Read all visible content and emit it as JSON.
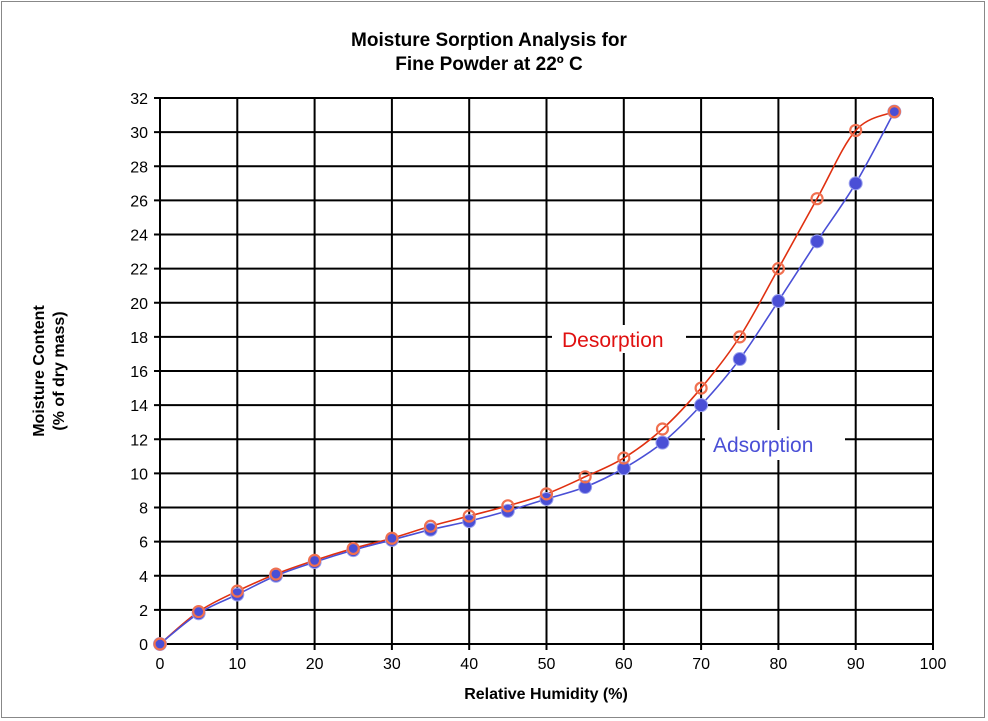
{
  "chart_data": {
    "type": "line",
    "title": [
      "Moisture Sorption Analysis for",
      "Fine Powder at 22º C"
    ],
    "xlabel": "Relative Humidity (%)",
    "ylabel": [
      "Moisture Content",
      "(% of dry mass)"
    ],
    "xlim": [
      0,
      100
    ],
    "ylim": [
      0,
      32
    ],
    "xticks": [
      0,
      10,
      20,
      30,
      40,
      50,
      60,
      70,
      80,
      90,
      100
    ],
    "yticks": [
      0,
      2,
      4,
      6,
      8,
      10,
      12,
      14,
      16,
      18,
      20,
      22,
      24,
      26,
      28,
      30,
      32
    ],
    "grid": true,
    "x": [
      0,
      5,
      10,
      15,
      20,
      25,
      30,
      35,
      40,
      45,
      50,
      55,
      60,
      65,
      70,
      75,
      80,
      85,
      90,
      95
    ],
    "series": [
      {
        "name": "Desorption",
        "color": "#e03010",
        "marker": "open-circle",
        "values": [
          0,
          1.9,
          3.1,
          4.1,
          4.9,
          5.6,
          6.2,
          6.9,
          7.5,
          8.1,
          8.8,
          9.8,
          10.9,
          12.6,
          15.0,
          18.0,
          22.0,
          26.1,
          30.1,
          31.2
        ]
      },
      {
        "name": "Adsorption",
        "color": "#4a4fd6",
        "marker": "filled-circle",
        "values": [
          0,
          1.8,
          2.9,
          4.0,
          4.8,
          5.5,
          6.1,
          6.7,
          7.2,
          7.8,
          8.5,
          9.2,
          10.3,
          11.8,
          14.0,
          16.7,
          20.1,
          23.6,
          27.0,
          31.2
        ]
      }
    ]
  }
}
